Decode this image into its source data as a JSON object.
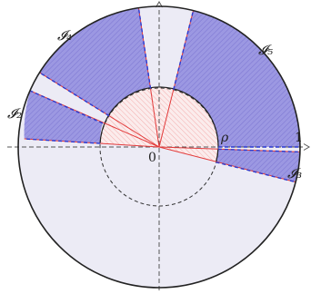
{
  "figure": {
    "sector_labels": [
      "𝓘₂",
      "𝓘₃",
      "𝓘₄",
      "𝓘₅"
    ],
    "inner_radius_label": "ρ",
    "outer_radius_label": "1",
    "origin_label": "0"
  },
  "colors": {
    "disk_fill": "#ecebf5",
    "sector_fill": "#9c98e2",
    "sector_hatch": "#7f79d3",
    "inner_hatch": "#f3a6a6",
    "inner_fill": "#fbecec",
    "red_line": "#e23a3a",
    "blue_dash": "#2b3bd1",
    "axis": "#555555",
    "outline": "#222222"
  }
}
